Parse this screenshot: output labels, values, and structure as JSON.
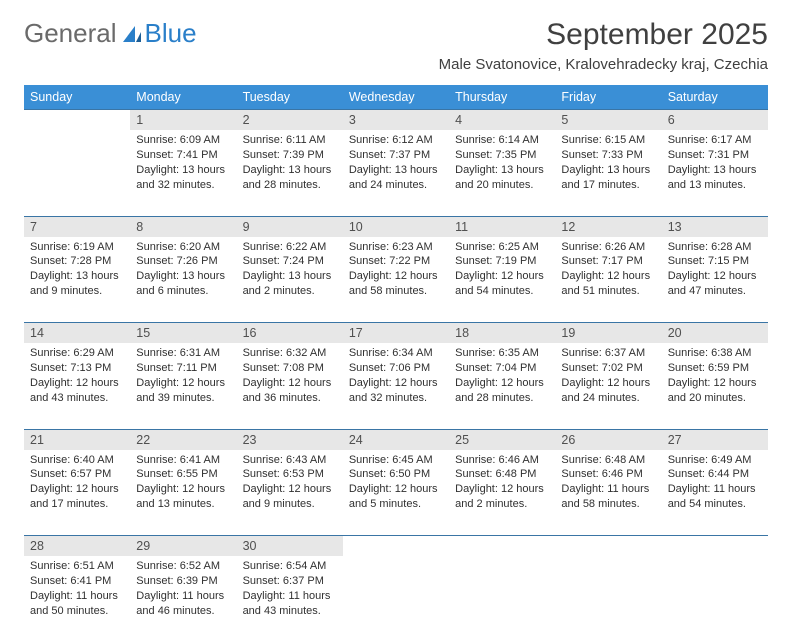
{
  "brand": {
    "part1": "General",
    "part2": "Blue"
  },
  "title": "September 2025",
  "subtitle": "Male Svatonovice, Kralovehradecky kraj, Czechia",
  "colors": {
    "header_bg": "#3a8fd6",
    "header_text": "#ffffff",
    "daynum_bg": "#e7e7e7",
    "border": "#3a75a5",
    "brand_gray": "#6a6a6a",
    "brand_blue": "#2a7fc9"
  },
  "weekdays": [
    "Sunday",
    "Monday",
    "Tuesday",
    "Wednesday",
    "Thursday",
    "Friday",
    "Saturday"
  ],
  "weeks": [
    [
      null,
      {
        "n": "1",
        "sr": "Sunrise: 6:09 AM",
        "ss": "Sunset: 7:41 PM",
        "dl": "Daylight: 13 hours and 32 minutes."
      },
      {
        "n": "2",
        "sr": "Sunrise: 6:11 AM",
        "ss": "Sunset: 7:39 PM",
        "dl": "Daylight: 13 hours and 28 minutes."
      },
      {
        "n": "3",
        "sr": "Sunrise: 6:12 AM",
        "ss": "Sunset: 7:37 PM",
        "dl": "Daylight: 13 hours and 24 minutes."
      },
      {
        "n": "4",
        "sr": "Sunrise: 6:14 AM",
        "ss": "Sunset: 7:35 PM",
        "dl": "Daylight: 13 hours and 20 minutes."
      },
      {
        "n": "5",
        "sr": "Sunrise: 6:15 AM",
        "ss": "Sunset: 7:33 PM",
        "dl": "Daylight: 13 hours and 17 minutes."
      },
      {
        "n": "6",
        "sr": "Sunrise: 6:17 AM",
        "ss": "Sunset: 7:31 PM",
        "dl": "Daylight: 13 hours and 13 minutes."
      }
    ],
    [
      {
        "n": "7",
        "sr": "Sunrise: 6:19 AM",
        "ss": "Sunset: 7:28 PM",
        "dl": "Daylight: 13 hours and 9 minutes."
      },
      {
        "n": "8",
        "sr": "Sunrise: 6:20 AM",
        "ss": "Sunset: 7:26 PM",
        "dl": "Daylight: 13 hours and 6 minutes."
      },
      {
        "n": "9",
        "sr": "Sunrise: 6:22 AM",
        "ss": "Sunset: 7:24 PM",
        "dl": "Daylight: 13 hours and 2 minutes."
      },
      {
        "n": "10",
        "sr": "Sunrise: 6:23 AM",
        "ss": "Sunset: 7:22 PM",
        "dl": "Daylight: 12 hours and 58 minutes."
      },
      {
        "n": "11",
        "sr": "Sunrise: 6:25 AM",
        "ss": "Sunset: 7:19 PM",
        "dl": "Daylight: 12 hours and 54 minutes."
      },
      {
        "n": "12",
        "sr": "Sunrise: 6:26 AM",
        "ss": "Sunset: 7:17 PM",
        "dl": "Daylight: 12 hours and 51 minutes."
      },
      {
        "n": "13",
        "sr": "Sunrise: 6:28 AM",
        "ss": "Sunset: 7:15 PM",
        "dl": "Daylight: 12 hours and 47 minutes."
      }
    ],
    [
      {
        "n": "14",
        "sr": "Sunrise: 6:29 AM",
        "ss": "Sunset: 7:13 PM",
        "dl": "Daylight: 12 hours and 43 minutes."
      },
      {
        "n": "15",
        "sr": "Sunrise: 6:31 AM",
        "ss": "Sunset: 7:11 PM",
        "dl": "Daylight: 12 hours and 39 minutes."
      },
      {
        "n": "16",
        "sr": "Sunrise: 6:32 AM",
        "ss": "Sunset: 7:08 PM",
        "dl": "Daylight: 12 hours and 36 minutes."
      },
      {
        "n": "17",
        "sr": "Sunrise: 6:34 AM",
        "ss": "Sunset: 7:06 PM",
        "dl": "Daylight: 12 hours and 32 minutes."
      },
      {
        "n": "18",
        "sr": "Sunrise: 6:35 AM",
        "ss": "Sunset: 7:04 PM",
        "dl": "Daylight: 12 hours and 28 minutes."
      },
      {
        "n": "19",
        "sr": "Sunrise: 6:37 AM",
        "ss": "Sunset: 7:02 PM",
        "dl": "Daylight: 12 hours and 24 minutes."
      },
      {
        "n": "20",
        "sr": "Sunrise: 6:38 AM",
        "ss": "Sunset: 6:59 PM",
        "dl": "Daylight: 12 hours and 20 minutes."
      }
    ],
    [
      {
        "n": "21",
        "sr": "Sunrise: 6:40 AM",
        "ss": "Sunset: 6:57 PM",
        "dl": "Daylight: 12 hours and 17 minutes."
      },
      {
        "n": "22",
        "sr": "Sunrise: 6:41 AM",
        "ss": "Sunset: 6:55 PM",
        "dl": "Daylight: 12 hours and 13 minutes."
      },
      {
        "n": "23",
        "sr": "Sunrise: 6:43 AM",
        "ss": "Sunset: 6:53 PM",
        "dl": "Daylight: 12 hours and 9 minutes."
      },
      {
        "n": "24",
        "sr": "Sunrise: 6:45 AM",
        "ss": "Sunset: 6:50 PM",
        "dl": "Daylight: 12 hours and 5 minutes."
      },
      {
        "n": "25",
        "sr": "Sunrise: 6:46 AM",
        "ss": "Sunset: 6:48 PM",
        "dl": "Daylight: 12 hours and 2 minutes."
      },
      {
        "n": "26",
        "sr": "Sunrise: 6:48 AM",
        "ss": "Sunset: 6:46 PM",
        "dl": "Daylight: 11 hours and 58 minutes."
      },
      {
        "n": "27",
        "sr": "Sunrise: 6:49 AM",
        "ss": "Sunset: 6:44 PM",
        "dl": "Daylight: 11 hours and 54 minutes."
      }
    ],
    [
      {
        "n": "28",
        "sr": "Sunrise: 6:51 AM",
        "ss": "Sunset: 6:41 PM",
        "dl": "Daylight: 11 hours and 50 minutes."
      },
      {
        "n": "29",
        "sr": "Sunrise: 6:52 AM",
        "ss": "Sunset: 6:39 PM",
        "dl": "Daylight: 11 hours and 46 minutes."
      },
      {
        "n": "30",
        "sr": "Sunrise: 6:54 AM",
        "ss": "Sunset: 6:37 PM",
        "dl": "Daylight: 11 hours and 43 minutes."
      },
      null,
      null,
      null,
      null
    ]
  ]
}
